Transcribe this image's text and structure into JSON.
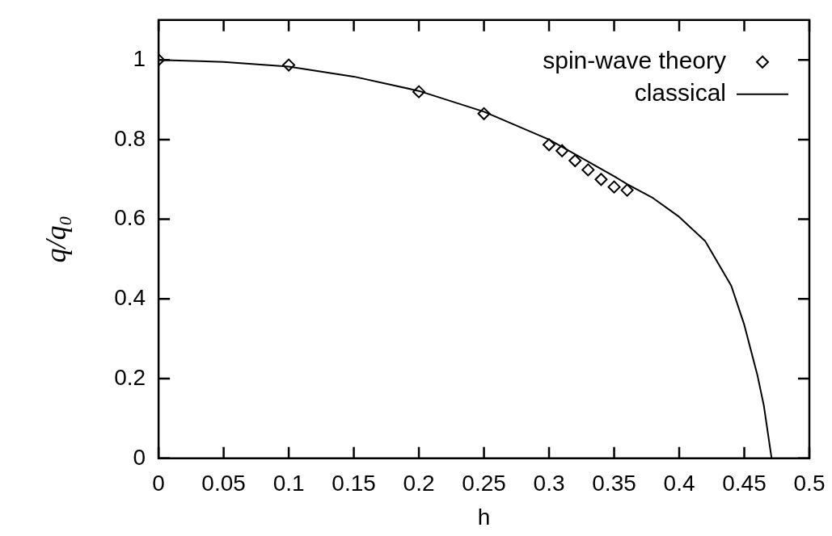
{
  "chart_data": {
    "type": "scatter",
    "xlabel": "h",
    "ylabel": "q/q₀",
    "xlim": [
      0,
      0.5
    ],
    "ylim": [
      0,
      1.1
    ],
    "xticks": [
      0,
      0.05,
      0.1,
      0.15,
      0.2,
      0.25,
      0.3,
      0.35,
      0.4,
      0.45,
      0.5
    ],
    "yticks": [
      0,
      0.2,
      0.4,
      0.6,
      0.8,
      1
    ],
    "grid": false,
    "legend": "top right",
    "series": [
      {
        "name": "spin-wave theory",
        "marker": "diamond",
        "color": "#000000",
        "x": [
          0,
          0.1,
          0.2,
          0.25,
          0.3,
          0.31,
          0.32,
          0.33,
          0.34,
          0.35,
          0.36
        ],
        "values": [
          1,
          0.987,
          0.92,
          0.865,
          0.787,
          0.772,
          0.747,
          0.724,
          0.7,
          0.681,
          0.673
        ]
      },
      {
        "name": "classical",
        "type": "line",
        "marker": "none",
        "line_style": "solid",
        "color": "#000000",
        "x": [
          0,
          0.05,
          0.1,
          0.15,
          0.2,
          0.25,
          0.3,
          0.35,
          0.36,
          0.38,
          0.4,
          0.42,
          0.44,
          0.45,
          0.46,
          0.465,
          0.471
        ],
        "values": [
          1,
          0.995,
          0.983,
          0.958,
          0.922,
          0.87,
          0.8,
          0.708,
          0.688,
          0.653,
          0.606,
          0.545,
          0.433,
          0.335,
          0.21,
          0.133,
          0
        ]
      }
    ]
  }
}
